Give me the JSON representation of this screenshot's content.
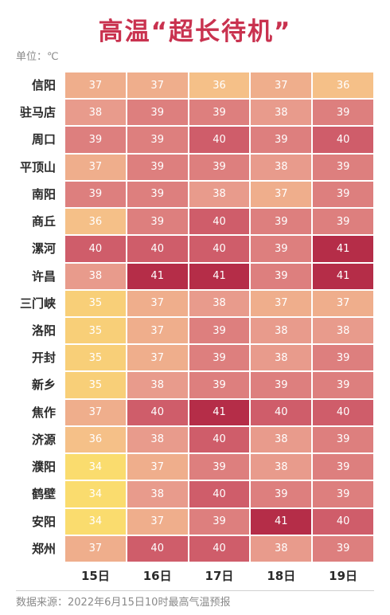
{
  "title": "高温“超长待机”",
  "unit": "单位：℃",
  "source": "数据来源：2022年6月15日10时最高气温预报",
  "chart_data": {
    "type": "heatmap",
    "title": "高温“超长待机”",
    "unit": "℃",
    "rows": [
      "信阳",
      "驻马店",
      "周口",
      "平顶山",
      "南阳",
      "商丘",
      "漯河",
      "许昌",
      "三门峡",
      "洛阳",
      "开封",
      "新乡",
      "焦作",
      "济源",
      "濮阳",
      "鹤壁",
      "安阳",
      "郑州"
    ],
    "columns": [
      "15日",
      "16日",
      "17日",
      "18日",
      "19日"
    ],
    "values": [
      [
        37,
        37,
        36,
        37,
        36
      ],
      [
        38,
        39,
        39,
        38,
        39
      ],
      [
        39,
        39,
        40,
        39,
        40
      ],
      [
        37,
        39,
        39,
        38,
        39
      ],
      [
        39,
        39,
        38,
        37,
        39
      ],
      [
        36,
        39,
        40,
        39,
        39
      ],
      [
        40,
        40,
        40,
        39,
        41
      ],
      [
        38,
        41,
        41,
        39,
        41
      ],
      [
        35,
        37,
        38,
        37,
        37
      ],
      [
        35,
        37,
        39,
        38,
        38
      ],
      [
        35,
        37,
        39,
        38,
        39
      ],
      [
        35,
        38,
        39,
        39,
        39
      ],
      [
        37,
        40,
        41,
        40,
        40
      ],
      [
        36,
        38,
        40,
        38,
        39
      ],
      [
        34,
        37,
        39,
        38,
        39
      ],
      [
        34,
        38,
        40,
        39,
        39
      ],
      [
        34,
        37,
        39,
        41,
        40
      ],
      [
        37,
        40,
        40,
        38,
        39
      ]
    ],
    "colors": {
      "34": "#fadc6e",
      "35": "#f8cf78",
      "36": "#f5c088",
      "37": "#efae8c",
      "38": "#e89b8c",
      "39": "#dd7f7e",
      "40": "#cf5d6a",
      "41": "#b52d48"
    },
    "source": "数据来源：2022年6月15日10时最高气温预报"
  }
}
